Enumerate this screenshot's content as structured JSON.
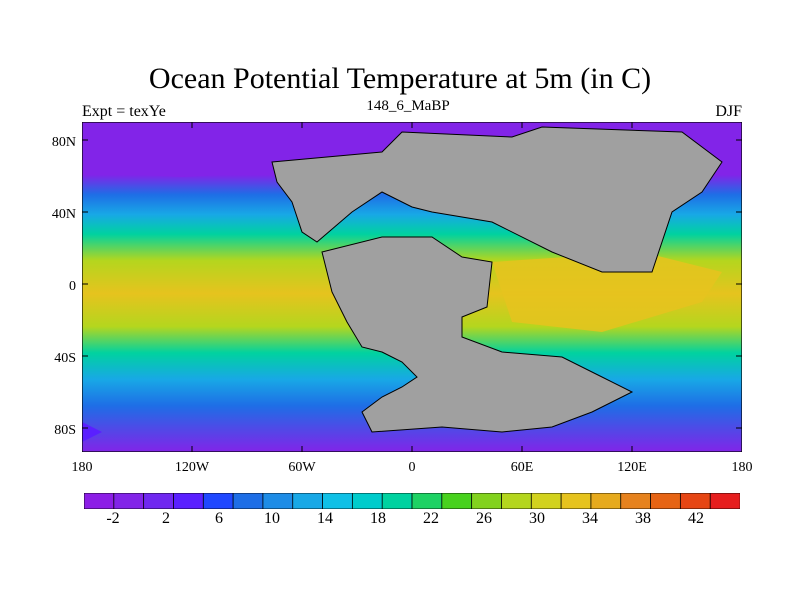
{
  "title": "Ocean Potential Temperature at 5m (in C)",
  "left_label": "Expt = texYe",
  "center_label": "148_6_MaBP",
  "right_label": "DJF",
  "axes": {
    "y_ticks": [
      "80N",
      "40N",
      "0",
      "40S",
      "80S"
    ],
    "x_ticks": [
      "180",
      "120W",
      "60W",
      "0",
      "60E",
      "120E",
      "180"
    ]
  },
  "colorbar": {
    "labels": [
      "-2",
      "2",
      "6",
      "10",
      "14",
      "18",
      "22",
      "26",
      "30",
      "34",
      "38",
      "42"
    ],
    "colors": [
      "#8c1ee6",
      "#8224e8",
      "#7028f0",
      "#5a20ff",
      "#2048ff",
      "#1e6ee6",
      "#1e8ce6",
      "#18a8e6",
      "#10c0e6",
      "#00cccc",
      "#00d2a0",
      "#1ed264",
      "#48d21e",
      "#82d21e",
      "#b4d61e",
      "#d2d21e",
      "#e6c31e",
      "#e6aa1e",
      "#e6821e",
      "#e66414",
      "#e64614",
      "#e61e1e"
    ]
  },
  "map_colors": {
    "land": "#a0a0a0",
    "polar": "#8224e8",
    "ocean_cold": "#1e6ee6",
    "ocean_cool": "#18a8e6",
    "ocean_mid": "#00d2a0",
    "ocean_warm": "#b4d61e",
    "ocean_hot": "#e6c31e"
  }
}
